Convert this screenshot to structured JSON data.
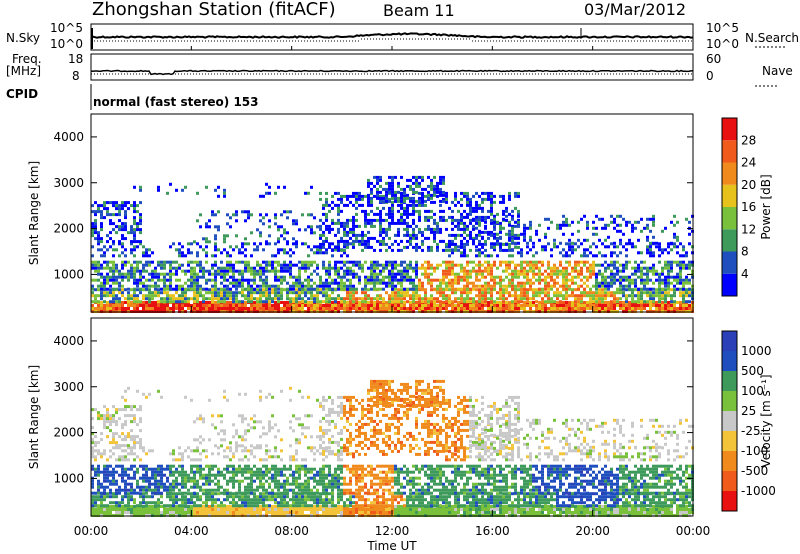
{
  "header": {
    "station": "Zhongshan Station (fitACF)",
    "beam": "Beam 11",
    "date": "03/Mar/2012"
  },
  "top_panels": {
    "nsky_label": "N.Sky",
    "nsky_ticks": [
      "10^5",
      "10^0"
    ],
    "nsearch_label": "N.Search",
    "freq_label_line1": "Freq.",
    "freq_label_line2": "[MHz]",
    "freq_ticks": [
      "18",
      "8"
    ],
    "nave_ticks": [
      "60",
      "0"
    ],
    "nave_label": "Nave",
    "cpid_label": "CPID",
    "cpid_text": "normal (fast stereo) 153"
  },
  "colors": {
    "power": [
      "#0000ff",
      "#1f4fbf",
      "#3e9a5a",
      "#79c13a",
      "#e8c21c",
      "#f08a1c",
      "#f05a1a",
      "#e81010"
    ],
    "velocity": [
      "#e81010",
      "#f05a1a",
      "#f08a1c",
      "#f3c43a",
      "#c8c8c8",
      "#79c13a",
      "#3e9a5a",
      "#1f4fbf",
      "#2b3fb8"
    ]
  },
  "chart_data": [
    {
      "type": "heatmap",
      "panel": "power",
      "xlabel": "",
      "ylabel": "Slant Range [km]",
      "x_ticks": [
        "00:00",
        "04:00",
        "08:00",
        "12:00",
        "16:00",
        "20:00",
        "00:00"
      ],
      "y_ticks": [
        1000,
        2000,
        3000,
        4000
      ],
      "ylim": [
        180,
        4500
      ],
      "xlim_hours": [
        0,
        24
      ],
      "colorbar_label": "Power [dB]",
      "colorbar_ticks": [
        4,
        8,
        12,
        16,
        20,
        24,
        28
      ],
      "colorbar_range": [
        0,
        32
      ]
    },
    {
      "type": "heatmap",
      "panel": "velocity",
      "xlabel": "Time UT",
      "ylabel": "Slant Range [km]",
      "x_ticks": [
        "00:00",
        "04:00",
        "08:00",
        "12:00",
        "16:00",
        "20:00",
        "00:00"
      ],
      "y_ticks": [
        1000,
        2000,
        3000,
        4000
      ],
      "ylim": [
        180,
        4500
      ],
      "xlim_hours": [
        0,
        24
      ],
      "colorbar_label": "Velocity [m s⁻¹]",
      "colorbar_ticks": [
        "1000",
        "500",
        "100",
        "25",
        "-25",
        "-100",
        "-500",
        "-1000"
      ]
    }
  ]
}
